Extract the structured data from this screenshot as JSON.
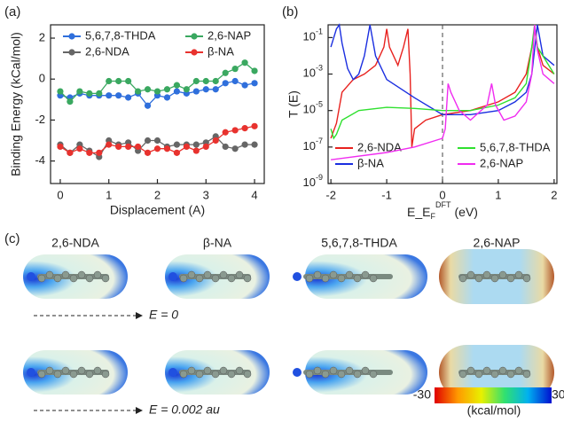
{
  "chart_data": [
    {
      "type": "line",
      "panel_label": "(a)",
      "x_label": "Displacement (A)",
      "y_label": "Binding Energy (kCal/mol)",
      "x": [
        0,
        0.2,
        0.4,
        0.6,
        0.8,
        1.0,
        1.2,
        1.4,
        1.6,
        1.8,
        2.0,
        2.2,
        2.4,
        2.6,
        2.8,
        3.0,
        3.2,
        3.4,
        3.6,
        3.8,
        4.0
      ],
      "series": [
        {
          "name": "5,6,7,8-THDA",
          "color": "#2f6fdc",
          "values": [
            -0.8,
            -0.9,
            -0.7,
            -0.8,
            -0.8,
            -0.8,
            -0.8,
            -0.9,
            -0.7,
            -1.3,
            -0.8,
            -0.9,
            -0.6,
            -0.7,
            -0.6,
            -0.5,
            -0.5,
            -0.2,
            -0.1,
            -0.3,
            -0.2
          ]
        },
        {
          "name": "2,6-NAP",
          "color": "#3aa860",
          "values": [
            -0.6,
            -1.1,
            -0.6,
            -0.7,
            -0.7,
            -0.1,
            -0.1,
            -0.1,
            -0.6,
            -0.5,
            -0.6,
            -0.5,
            -0.3,
            -0.5,
            -0.1,
            -0.1,
            -0.1,
            0.3,
            0.5,
            0.8,
            0.4
          ]
        },
        {
          "name": "2,6-NDA",
          "color": "#666666",
          "values": [
            -3.2,
            -3.6,
            -3.2,
            -3.5,
            -3.8,
            -3.0,
            -3.2,
            -3.1,
            -3.5,
            -3.0,
            -3.0,
            -3.3,
            -3.2,
            -3.2,
            -3.2,
            -3.1,
            -2.8,
            -3.3,
            -3.4,
            -3.2,
            -3.2
          ]
        },
        {
          "name": "β-NA",
          "color": "#e8322e",
          "values": [
            -3.3,
            -3.6,
            -3.4,
            -3.6,
            -3.6,
            -3.2,
            -3.3,
            -3.3,
            -3.3,
            -3.6,
            -3.4,
            -3.4,
            -3.6,
            -3.3,
            -3.5,
            -3.3,
            -3.0,
            -2.6,
            -2.5,
            -2.4,
            -2.3
          ]
        }
      ],
      "xlim": [
        -0.2,
        4.2
      ],
      "xticks": [
        0,
        1,
        2,
        3,
        4
      ],
      "ylim": [
        -5.1,
        2.65
      ],
      "yticks": [
        -4,
        -2,
        0,
        2
      ],
      "legend": "upper"
    },
    {
      "type": "line",
      "panel_label": "(b)",
      "x_label": {
        "main": "E_E",
        "sub": "F",
        "sup": "DFT",
        "unit": "(eV)"
      },
      "y_label": "T (E)",
      "log_y": true,
      "vline": 0,
      "series": [
        {
          "name": "2,6-NDA",
          "color": "#e8221f",
          "x": [
            -2,
            -1.9,
            -1.8,
            -1.6,
            -1.4,
            -1.2,
            -1.05,
            -1.0,
            -0.95,
            -0.8,
            -0.7,
            -0.62,
            -0.58,
            -0.55,
            -0.5,
            -0.3,
            0,
            0.5,
            1,
            1.3,
            1.5,
            1.6,
            1.65,
            1.7,
            1.8,
            2
          ],
          "values": [
            3e-07,
            2e-06,
            0.0001,
            0.0005,
            0.001,
            0.003,
            0.03,
            0.3,
            0.03,
            0.003,
            0.03,
            0.3,
            0.001,
            1e-07,
            1e-06,
            3e-06,
            6e-06,
            1e-05,
            3e-05,
            0.0001,
            0.001,
            0.03,
            0.3,
            0.03,
            0.003,
            0.001
          ]
        },
        {
          "name": "β-NA",
          "color": "#1a2ee0",
          "x": [
            -2,
            -1.9,
            -1.85,
            -1.8,
            -1.7,
            -1.6,
            -1.5,
            -1.4,
            -1.3,
            -1.2,
            -1.0,
            -0.5,
            0,
            0.5,
            1,
            1.3,
            1.5,
            1.6,
            1.7,
            1.8,
            2
          ],
          "values": [
            0.03,
            0.3,
            0.5,
            0.05,
            0.002,
            0.0005,
            0.001,
            0.01,
            0.5,
            0.01,
            0.0005,
            5e-05,
            6e-06,
            6e-06,
            1e-05,
            3e-05,
            0.0001,
            0.001,
            0.5,
            0.01,
            0.003
          ]
        },
        {
          "name": "5,6,7,8-THDA",
          "color": "#2fe02f",
          "x": [
            -2,
            -1.95,
            -1.9,
            -1.8,
            -1.5,
            -1,
            -0.5,
            0,
            0.5,
            1,
            1.3,
            1.5,
            1.6,
            1.65,
            1.7,
            2
          ],
          "values": [
            1e-06,
            3e-07,
            5e-07,
            3e-06,
            1e-05,
            1.5e-05,
            1.3e-05,
            1e-05,
            1e-05,
            2e-05,
            5e-05,
            0.0003,
            0.03,
            0.5,
            0.03,
            0.001
          ]
        },
        {
          "name": "2,6-NAP",
          "color": "#f02cf0",
          "x": [
            -2,
            -1,
            -0.5,
            0,
            0.05,
            0.1,
            0.15,
            0.3,
            0.5,
            0.8,
            0.88,
            0.95,
            1.1,
            1.3,
            1.5,
            1.6,
            1.65,
            1.7,
            1.8,
            2
          ],
          "values": [
            2e-08,
            5e-08,
            1e-07,
            3e-07,
            1e-06,
            0.0003,
            0.0001,
            1e-05,
            3e-06,
            2e-05,
            0.0003,
            2e-05,
            3e-06,
            5e-06,
            3e-05,
            0.001,
            0.5,
            0.02,
            0.001,
            0.0003
          ]
        }
      ],
      "xlim": [
        -2.05,
        2.05
      ],
      "xticks": [
        -2,
        -1,
        0,
        1,
        2
      ],
      "ylim": [
        1e-09,
        0.5
      ],
      "yticks": [
        {
          "value": 1e-09,
          "label": "10-9"
        },
        {
          "value": 1e-07,
          "label": "10-7"
        },
        {
          "value": 1e-05,
          "label": "10-5"
        },
        {
          "value": 0.001,
          "label": "10-3"
        },
        {
          "value": 0.1,
          "label": "10-1"
        }
      ],
      "legend": "lower"
    }
  ],
  "panel_c": {
    "panel_label": "(c)",
    "molecules": [
      "2,6-NDA",
      "β-NA",
      "5,6,7,8-THDA",
      "2,6-NAP"
    ],
    "field_labels": [
      "E = 0",
      "E = 0.002 au"
    ],
    "colorbar": {
      "min": -30,
      "max": 30,
      "unit": "(kcal/mol)"
    }
  }
}
